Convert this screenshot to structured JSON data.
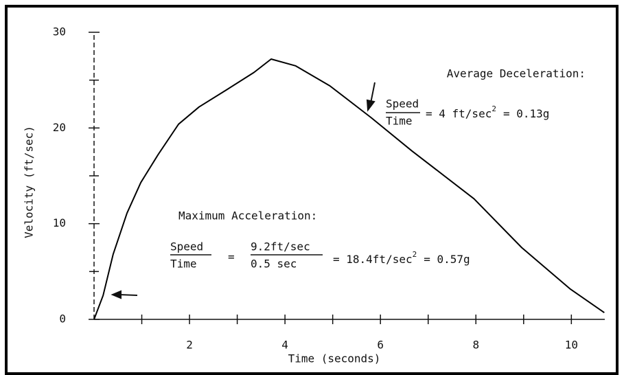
{
  "chart_data": {
    "type": "line",
    "x_label": "Time (seconds)",
    "y_label": "Velocity (ft/sec)",
    "x": [
      0,
      0.19,
      0.4,
      0.69,
      0.98,
      1.34,
      1.77,
      2.2,
      2.78,
      3.35,
      3.71,
      4.22,
      4.94,
      5.8,
      6.66,
      7.96,
      8.96,
      9.97,
      10.69
    ],
    "values": [
      0,
      2.5,
      6.8,
      11.1,
      14.3,
      17.2,
      20.4,
      22.2,
      24,
      25.8,
      27.2,
      26.5,
      24.4,
      21.1,
      17.6,
      12.6,
      7.5,
      3.2,
      0.7
    ],
    "color": "#000000",
    "xlim": [
      0,
      10.7
    ],
    "xticks": [
      2,
      4,
      6,
      8,
      10
    ],
    "xticks_minor": [
      1,
      3,
      5,
      7,
      9
    ],
    "ylim": [
      0,
      30
    ],
    "yticks": [
      0,
      10,
      20,
      30
    ],
    "yticks_minor": [
      5,
      15,
      25
    ],
    "deceleration": {
      "title": "Average Deceleration:",
      "numerator": "Speed",
      "denominator": "Time",
      "result": "= 4 ft/sec",
      "exponent": "2",
      "suffix": "= 0.13g"
    },
    "acceleration": {
      "title": "Maximum Acceleration:",
      "numerator": "Speed",
      "denominator": "Time",
      "equals": "=",
      "numerator2": "9.2ft/sec",
      "denominator2": "0.5 sec",
      "result": "= 18.4ft/sec",
      "exponent": "2",
      "suffix": "= 0.57g"
    }
  }
}
